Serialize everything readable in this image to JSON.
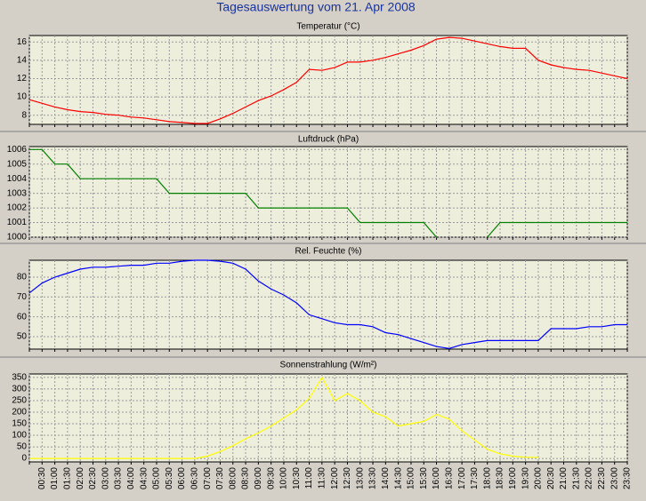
{
  "title": "Tagesauswertung vom 21. Apr 2008",
  "chart_data": [
    {
      "type": "line",
      "title": "Temperatur (°C)",
      "color": "#ff0000",
      "grid": true,
      "ylim": [
        7,
        16.7
      ],
      "yticks": [
        8,
        10,
        12,
        14,
        16
      ],
      "values": [
        9.7,
        9.3,
        8.9,
        8.6,
        8.4,
        8.3,
        8.1,
        8.0,
        7.8,
        7.7,
        7.5,
        7.3,
        7.2,
        7.1,
        7.1,
        7.6,
        8.2,
        8.9,
        9.6,
        10.1,
        10.8,
        11.6,
        13.0,
        12.9,
        13.2,
        13.8,
        13.8,
        14.0,
        14.3,
        14.7,
        15.1,
        15.6,
        16.3,
        16.5,
        16.4,
        16.1,
        15.8,
        15.5,
        15.3,
        15.3,
        14.0,
        13.5,
        13.2,
        13.0,
        12.9,
        12.6,
        12.3,
        12.0
      ]
    },
    {
      "type": "line",
      "title": "Luftdruck (hPa)",
      "color": "#008000",
      "grid": true,
      "ylim": [
        1000,
        1006.2
      ],
      "yticks": [
        1000,
        1001,
        1002,
        1003,
        1004,
        1005,
        1006
      ],
      "values": [
        1006,
        1006,
        1005,
        1005,
        1004,
        1004,
        1004,
        1004,
        1004,
        1004,
        1004,
        1003,
        1003,
        1003,
        1003,
        1003,
        1003,
        1003,
        1002,
        1002,
        1002,
        1002,
        1002,
        1002,
        1002,
        1002,
        1001,
        1001,
        1001,
        1001,
        1001,
        1001,
        1000,
        null,
        null,
        null,
        1000,
        1001,
        1001,
        1001,
        1001,
        1001,
        1001,
        1001,
        1001,
        1001,
        1001,
        1001
      ]
    },
    {
      "type": "line",
      "title": "Rel. Feuchte (%)",
      "color": "#0000ff",
      "grid": true,
      "ylim": [
        43.7,
        88.5
      ],
      "yticks": [
        50,
        60,
        70,
        80
      ],
      "values": [
        72,
        77,
        80,
        82,
        84,
        85,
        85,
        85.5,
        86,
        86,
        87,
        87,
        88,
        88.5,
        88.5,
        88,
        87,
        84,
        78,
        74,
        71,
        67,
        61,
        59,
        57,
        56,
        56,
        55,
        52,
        51,
        49,
        47,
        45,
        44,
        46,
        47,
        48,
        48,
        48,
        48,
        48,
        54,
        54,
        54,
        55,
        55,
        56,
        56
      ]
    },
    {
      "type": "line",
      "title": "Sonnenstrahlung (W/m²)",
      "color": "#ffff00",
      "grid": true,
      "ylim": [
        -15,
        365
      ],
      "yticks": [
        0,
        50,
        100,
        150,
        200,
        250,
        300,
        350
      ],
      "categories": [
        null,
        "00:30",
        "01:00",
        "01:30",
        "02:00",
        "02:30",
        "03:00",
        "03:30",
        "04:00",
        "04:30",
        "05:00",
        "05:30",
        "06:00",
        "06:30",
        "07:00",
        "07:30",
        "08:00",
        "08:30",
        "09:00",
        "09:30",
        "10:00",
        "10:30",
        "11:00",
        "11:30",
        "12:00",
        "12:30",
        "13:00",
        "13:30",
        "14:00",
        "14:30",
        "15:00",
        "15:30",
        "16:00",
        "16:30",
        "17:00",
        "17:30",
        "18:00",
        "18:30",
        "19:00",
        "19:30",
        "20:00",
        "20:30",
        "21:00",
        "21:30",
        "22:00",
        "22:30",
        "23:00",
        "23:30"
      ],
      "values": [
        0,
        0,
        0,
        0,
        0,
        0,
        0,
        0,
        0,
        0,
        0,
        0,
        0,
        0,
        10,
        30,
        55,
        85,
        110,
        140,
        175,
        210,
        260,
        350,
        250,
        280,
        250,
        200,
        180,
        140,
        150,
        160,
        190,
        170,
        120,
        80,
        40,
        20,
        10,
        5,
        5,
        null,
        null,
        null,
        null,
        null,
        null,
        null
      ]
    }
  ]
}
